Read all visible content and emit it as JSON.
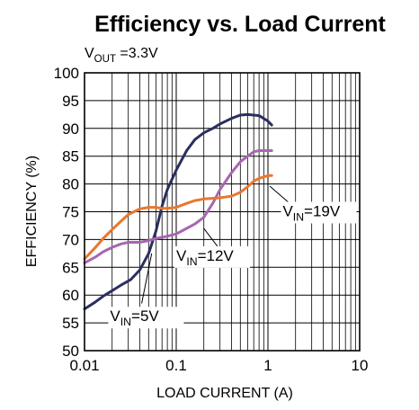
{
  "chart_data": {
    "type": "line",
    "title": "Efficiency vs. Load Current",
    "subtitle": {
      "main": "V",
      "sub": "OUT",
      "rest": " =3.3V"
    },
    "xlabel": "LOAD CURRENT (A)",
    "ylabel": "EFFICIENCY (%)",
    "xscale": "log",
    "xlim": [
      0.01,
      10
    ],
    "ylim": [
      50,
      100
    ],
    "x_ticks": [
      {
        "value": 0.01,
        "label": "0.01"
      },
      {
        "value": 0.1,
        "label": "0.1"
      },
      {
        "value": 1,
        "label": "1"
      },
      {
        "value": 10,
        "label": "10"
      }
    ],
    "y_ticks": [
      {
        "value": 50,
        "label": "50"
      },
      {
        "value": 55,
        "label": "55"
      },
      {
        "value": 60,
        "label": "60"
      },
      {
        "value": 65,
        "label": "65"
      },
      {
        "value": 70,
        "label": "70"
      },
      {
        "value": 75,
        "label": "75"
      },
      {
        "value": 80,
        "label": "80"
      },
      {
        "value": 85,
        "label": "85"
      },
      {
        "value": 90,
        "label": "90"
      },
      {
        "value": 95,
        "label": "95"
      },
      {
        "value": 100,
        "label": "100"
      }
    ],
    "grid": true,
    "series": [
      {
        "key": "vin5",
        "color": "#2b2f5e",
        "label": {
          "main": "V",
          "sub": "IN",
          "rest": "=5V"
        },
        "points": [
          [
            0.01,
            57.5
          ],
          [
            0.013,
            58.7
          ],
          [
            0.016,
            59.8
          ],
          [
            0.02,
            60.8
          ],
          [
            0.025,
            61.8
          ],
          [
            0.032,
            62.8
          ],
          [
            0.04,
            64.5
          ],
          [
            0.05,
            67.5
          ],
          [
            0.06,
            71.5
          ],
          [
            0.07,
            76
          ],
          [
            0.08,
            79
          ],
          [
            0.1,
            82.5
          ],
          [
            0.13,
            86
          ],
          [
            0.16,
            88
          ],
          [
            0.2,
            89.2
          ],
          [
            0.25,
            90
          ],
          [
            0.3,
            90.8
          ],
          [
            0.4,
            91.8
          ],
          [
            0.5,
            92.4
          ],
          [
            0.6,
            92.5
          ],
          [
            0.7,
            92.4
          ],
          [
            0.8,
            92.3
          ],
          [
            0.9,
            91.8
          ],
          [
            1,
            91.3
          ],
          [
            1.1,
            90.6
          ]
        ]
      },
      {
        "key": "vin12",
        "color": "#a766b0",
        "label": {
          "main": "V",
          "sub": "IN",
          "rest": "=12V"
        },
        "points": [
          [
            0.01,
            65.8
          ],
          [
            0.013,
            66.8
          ],
          [
            0.016,
            67.8
          ],
          [
            0.02,
            68.6
          ],
          [
            0.025,
            69.2
          ],
          [
            0.03,
            69.5
          ],
          [
            0.04,
            69.5
          ],
          [
            0.05,
            69.8
          ],
          [
            0.06,
            70.2
          ],
          [
            0.07,
            70.4
          ],
          [
            0.08,
            70.6
          ],
          [
            0.1,
            71
          ],
          [
            0.13,
            72
          ],
          [
            0.16,
            72.8
          ],
          [
            0.2,
            74
          ],
          [
            0.25,
            76.5
          ],
          [
            0.3,
            79
          ],
          [
            0.4,
            82
          ],
          [
            0.5,
            84
          ],
          [
            0.6,
            85
          ],
          [
            0.7,
            85.8
          ],
          [
            0.8,
            86
          ],
          [
            1,
            86
          ],
          [
            1.1,
            86
          ]
        ]
      },
      {
        "key": "vin19",
        "color": "#e9772f",
        "label": {
          "main": "V",
          "sub": "IN",
          "rest": "=19V"
        },
        "points": [
          [
            0.01,
            66.5
          ],
          [
            0.013,
            68.5
          ],
          [
            0.016,
            70.2
          ],
          [
            0.02,
            71.8
          ],
          [
            0.025,
            73.3
          ],
          [
            0.03,
            74.5
          ],
          [
            0.04,
            75.5
          ],
          [
            0.05,
            75.8
          ],
          [
            0.06,
            75.8
          ],
          [
            0.07,
            75.6
          ],
          [
            0.08,
            75.6
          ],
          [
            0.1,
            75.8
          ],
          [
            0.13,
            76.5
          ],
          [
            0.16,
            77
          ],
          [
            0.2,
            77.3
          ],
          [
            0.3,
            77.5
          ],
          [
            0.4,
            77.8
          ],
          [
            0.5,
            78.5
          ],
          [
            0.6,
            79.5
          ],
          [
            0.7,
            80.5
          ],
          [
            0.8,
            81
          ],
          [
            1,
            81.5
          ],
          [
            1.1,
            81.5
          ]
        ]
      }
    ],
    "annotations": [
      {
        "series": "vin19",
        "label_at": [
          1.45,
          74.2
        ],
        "leader_from": [
          1.05,
          79.6
        ],
        "leader_to": [
          1.7,
          76.6
        ]
      },
      {
        "series": "vin12",
        "label_at": [
          0.1,
          66.2
        ],
        "leader_from": [
          0.2,
          72
        ],
        "leader_to": [
          0.29,
          68.5
        ]
      },
      {
        "series": "vin5",
        "label_at": [
          0.019,
          55.3
        ],
        "leader_from": [
          0.054,
          67.5
        ],
        "leader_to": [
          0.042,
          58.5
        ]
      }
    ]
  }
}
